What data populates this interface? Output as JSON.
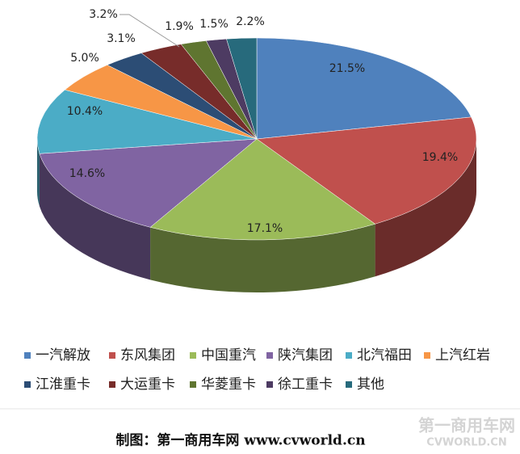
{
  "chart_data": {
    "type": "pie3d",
    "categories": [
      "一汽解放",
      "东风集团",
      "中国重汽",
      "陕汽集团",
      "北汽福田",
      "上汽红岩",
      "江淮重卡",
      "大运重卡",
      "华菱重卡",
      "徐工重卡",
      "其他"
    ],
    "values": [
      21.5,
      19.4,
      17.1,
      14.6,
      10.4,
      5.0,
      3.1,
      3.2,
      1.9,
      1.5,
      2.2
    ],
    "value_labels": [
      "21.5%",
      "19.4%",
      "17.1%",
      "14.6%",
      "10.4%",
      "5.0%",
      "3.1%",
      "3.2%",
      "1.9%",
      "1.5%",
      "2.2%"
    ],
    "colors": [
      "#4f81bd",
      "#c0504d",
      "#9bbb59",
      "#8064a2",
      "#4bacc6",
      "#f79646",
      "#2c4d75",
      "#772c2a",
      "#5f7530",
      "#4d3b62",
      "#276a7c"
    ],
    "legend": "bottom"
  },
  "footer": "制图：第一商用车网 www.cvworld.cn",
  "watermark": {
    "name": "第一商用车网",
    "site": "CVWORLD.CN"
  }
}
